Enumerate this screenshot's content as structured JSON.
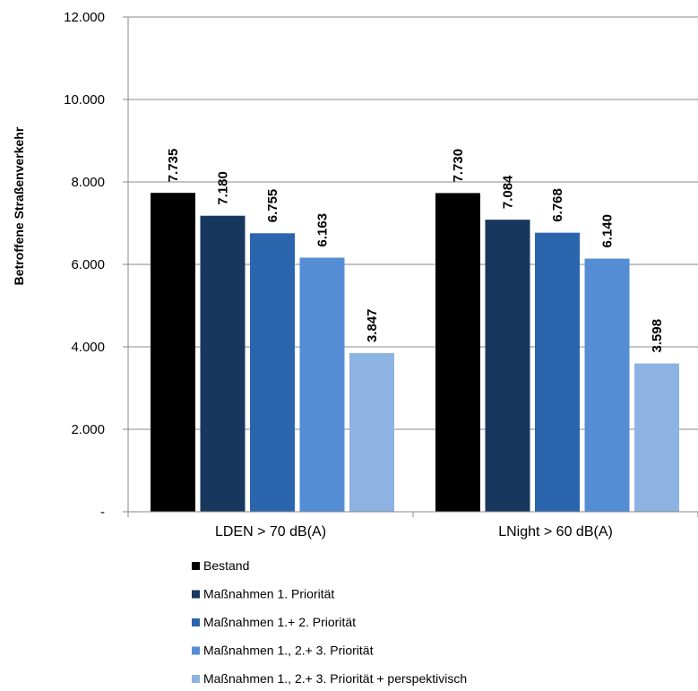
{
  "chart_data": {
    "type": "bar",
    "ylabel": "Betroffene Straßenverkehr",
    "ylim": [
      0,
      12000
    ],
    "y_ticks": [
      0,
      2000,
      4000,
      6000,
      8000,
      10000,
      12000
    ],
    "y_tick_labels": [
      "-",
      "2.000",
      "4.000",
      "6.000",
      "8.000",
      "10.000",
      "12.000"
    ],
    "grid": "horizontal",
    "legend_position": "bottom",
    "categories": [
      "LDEN > 70 dB(A)",
      "LNight >  60 dB(A)"
    ],
    "series": [
      {
        "name": "Bestand",
        "color": "#000000",
        "values": [
          7735,
          7730
        ],
        "labels": [
          "7.735",
          "7.730"
        ]
      },
      {
        "name": "Maßnahmen 1. Priorität",
        "color": "#17375e",
        "values": [
          7180,
          7084
        ],
        "labels": [
          "7.180",
          "7.084"
        ]
      },
      {
        "name": "Maßnahmen 1.+ 2. Priorität",
        "color": "#2b65ad",
        "values": [
          6755,
          6768
        ],
        "labels": [
          "6.755",
          "6.768"
        ]
      },
      {
        "name": "Maßnahmen 1., 2.+ 3. Priorität",
        "color": "#548dd4",
        "values": [
          6163,
          6140
        ],
        "labels": [
          "6.163",
          "6.140"
        ]
      },
      {
        "name": "Maßnahmen 1., 2.+ 3. Priorität + perspektivisch",
        "color": "#8db3e2",
        "values": [
          3847,
          3598
        ],
        "labels": [
          "3.847",
          "3.598"
        ]
      }
    ]
  }
}
